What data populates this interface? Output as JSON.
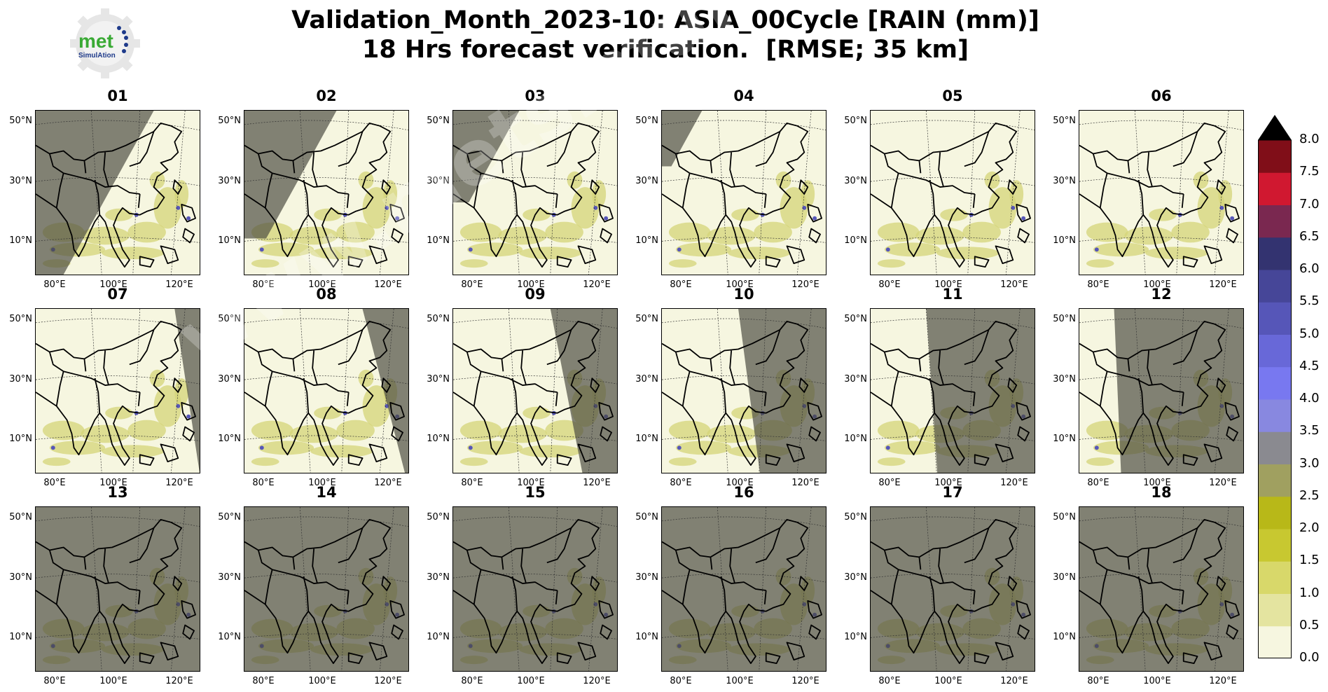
{
  "logo": {
    "text_main": "met",
    "text_sub": "SimulAtion",
    "icon": "gear-logo-icon"
  },
  "title": {
    "line1": "Validation_Month_2023-10: ASIA_00Cycle [RAIN (mm)]",
    "line2": "18 Hrs forecast verification.  [RMSE; 35 km]"
  },
  "watermark": "www.metsimulation.com",
  "panels": [
    {
      "label": "01",
      "night": "west"
    },
    {
      "label": "02",
      "night": "west"
    },
    {
      "label": "03",
      "night": "west"
    },
    {
      "label": "04",
      "night": "west"
    },
    {
      "label": "05",
      "night": "none"
    },
    {
      "label": "06",
      "night": "none"
    },
    {
      "label": "07",
      "night": "east"
    },
    {
      "label": "08",
      "night": "east"
    },
    {
      "label": "09",
      "night": "east"
    },
    {
      "label": "10",
      "night": "east"
    },
    {
      "label": "11",
      "night": "east"
    },
    {
      "label": "12",
      "night": "east"
    },
    {
      "label": "13",
      "night": "all"
    },
    {
      "label": "14",
      "night": "all"
    },
    {
      "label": "15",
      "night": "all"
    },
    {
      "label": "16",
      "night": "all"
    },
    {
      "label": "17",
      "night": "all"
    },
    {
      "label": "18",
      "night": "all"
    }
  ],
  "lat_labels": [
    "50°N",
    "30°N",
    "10°N"
  ],
  "lon_labels": [
    "80°E",
    "100°E",
    "120°E"
  ],
  "colorbar": {
    "ticks": [
      "8.0",
      "7.5",
      "7.0",
      "6.5",
      "6.0",
      "5.5",
      "5.0",
      "4.5",
      "4.0",
      "3.5",
      "3.0",
      "2.5",
      "2.0",
      "1.5",
      "1.0",
      "0.5",
      "0.0"
    ],
    "colors": [
      "#f6f6e0",
      "#e4e4a0",
      "#d8d86a",
      "#c8c830",
      "#b8b818",
      "#a0a060",
      "#8a8a90",
      "#8888e0",
      "#7878f0",
      "#6868d8",
      "#5656b8",
      "#464698",
      "#333370",
      "#7a2850",
      "#d01830",
      "#800e18"
    ],
    "extend_color": "#000000"
  }
}
